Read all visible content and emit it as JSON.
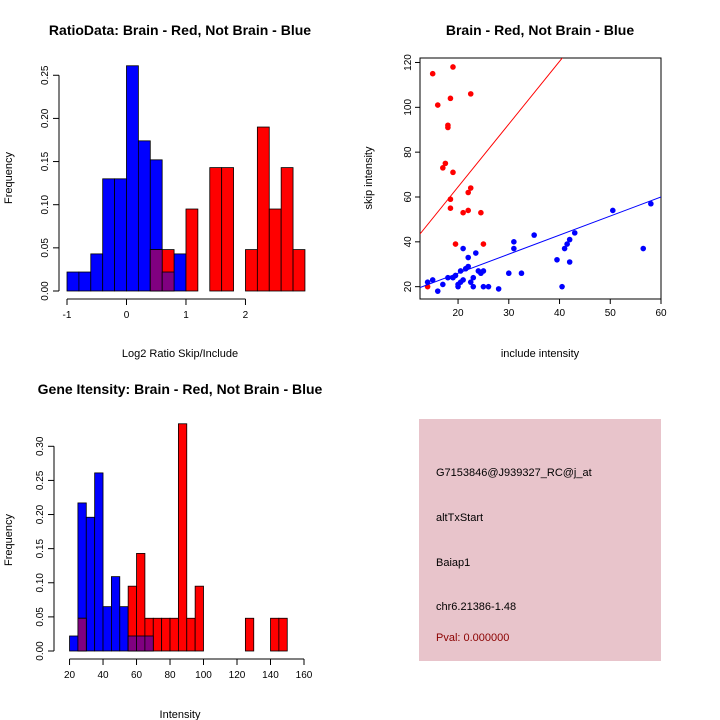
{
  "colors": {
    "brain": "#ff0000",
    "not_brain": "#0000ff",
    "overlap": "#800080",
    "panel_fill": "#e8c4cb",
    "pval": "#8b0000"
  },
  "chart_data": [
    {
      "type": "histogram",
      "title": "RatioData: Brain - Red, Not Brain - Blue",
      "xlabel": "Log2 Ratio Skip/Include",
      "ylabel": "Frequency",
      "xlim": [
        -1,
        2.9
      ],
      "ylim": [
        0,
        0.27
      ],
      "xticks": [
        -1,
        0,
        1,
        2
      ],
      "yticks": [
        0.0,
        0.05,
        0.1,
        0.15,
        0.2,
        0.25
      ],
      "yticklabels": [
        "0.00",
        "0.05",
        "0.10",
        "0.15",
        "0.20",
        "0.25"
      ],
      "bin_width": 0.2,
      "series": [
        {
          "name": "Not Brain",
          "color": "blue",
          "bins": [
            -1.0,
            -0.8,
            -0.6,
            -0.4,
            -0.2,
            0.0,
            0.2,
            0.4,
            0.6,
            0.8
          ],
          "values": [
            0.022,
            0.022,
            0.043,
            0.13,
            0.13,
            0.261,
            0.174,
            0.152,
            0.022,
            0.043
          ]
        },
        {
          "name": "Brain",
          "color": "red",
          "bins": [
            0.4,
            0.6,
            0.8,
            1.0,
            1.2,
            1.4,
            1.6,
            1.8,
            2.0,
            2.2,
            2.4,
            2.6,
            2.8
          ],
          "values": [
            0.048,
            0.048,
            0.0,
            0.095,
            0.0,
            0.143,
            0.143,
            0.0,
            0.048,
            0.19,
            0.095,
            0.143,
            0.048
          ]
        }
      ]
    },
    {
      "type": "scatter",
      "title": "Brain - Red, Not Brain - Blue",
      "xlabel": "include intensity",
      "ylabel": "skip intensity",
      "xlim": [
        12.5,
        60
      ],
      "ylim": [
        14.5,
        122
      ],
      "xticks": [
        20,
        30,
        40,
        50,
        60
      ],
      "yticks": [
        20,
        40,
        60,
        80,
        100,
        120
      ],
      "series": [
        {
          "name": "Brain",
          "color": "red",
          "points": [
            [
              15,
              115
            ],
            [
              16,
              101
            ],
            [
              17,
              73
            ],
            [
              17.5,
              75
            ],
            [
              18,
              91
            ],
            [
              18,
              92
            ],
            [
              18.5,
              59
            ],
            [
              18.5,
              104
            ],
            [
              19,
              118
            ],
            [
              19,
              71
            ],
            [
              18.5,
              55
            ],
            [
              19.5,
              39
            ],
            [
              21,
              53
            ],
            [
              22,
              62
            ],
            [
              22.5,
              64
            ],
            [
              22,
              54
            ],
            [
              22.5,
              106
            ],
            [
              24.5,
              53
            ],
            [
              25,
              39
            ],
            [
              14,
              20
            ]
          ],
          "fit_line": {
            "intercept": 8.5,
            "slope": 2.8
          }
        },
        {
          "name": "Not Brain",
          "color": "blue",
          "points": [
            [
              14,
              22
            ],
            [
              15,
              23
            ],
            [
              16,
              18
            ],
            [
              17,
              21
            ],
            [
              18,
              24
            ],
            [
              19,
              24
            ],
            [
              19.5,
              25
            ],
            [
              20,
              21
            ],
            [
              20.5,
              22
            ],
            [
              20.5,
              27
            ],
            [
              21,
              23
            ],
            [
              21.5,
              28
            ],
            [
              22,
              29
            ],
            [
              22,
              33
            ],
            [
              23,
              24
            ],
            [
              23.5,
              35
            ],
            [
              24.5,
              26
            ],
            [
              25,
              27
            ],
            [
              25,
              20
            ],
            [
              26,
              20
            ],
            [
              20,
              20
            ],
            [
              21,
              37
            ],
            [
              22.5,
              22
            ],
            [
              23,
              20
            ],
            [
              24,
              27
            ],
            [
              28,
              19
            ],
            [
              30,
              26
            ],
            [
              31,
              37
            ],
            [
              31,
              40
            ],
            [
              32.5,
              26
            ],
            [
              35,
              43
            ],
            [
              39.5,
              32
            ],
            [
              40.5,
              20
            ],
            [
              41,
              37
            ],
            [
              41.5,
              39
            ],
            [
              42,
              41
            ],
            [
              42,
              31
            ],
            [
              43,
              44
            ],
            [
              50.5,
              54
            ],
            [
              56.5,
              37
            ],
            [
              58,
              57
            ]
          ],
          "fit_line": {
            "intercept": 9.0,
            "slope": 0.85
          }
        }
      ]
    },
    {
      "type": "histogram",
      "title": "Gene Itensity: Brain - Red, Not Brain - Blue",
      "xlabel": "Intensity",
      "ylabel": "Frequency",
      "xlim": [
        15.5,
        160
      ],
      "ylim": [
        0,
        0.34
      ],
      "xticks": [
        20,
        40,
        60,
        80,
        100,
        120,
        140,
        160
      ],
      "yticks": [
        0.0,
        0.05,
        0.1,
        0.15,
        0.2,
        0.25,
        0.3
      ],
      "yticklabels": [
        "0.00",
        "0.05",
        "0.10",
        "0.15",
        "0.20",
        "0.25",
        "0.30"
      ],
      "bin_width": 5,
      "series": [
        {
          "name": "Not Brain",
          "color": "blue",
          "bins": [
            20,
            25,
            30,
            35,
            40,
            45,
            50,
            55,
            60,
            65,
            70,
            75,
            80
          ],
          "values": [
            0.022,
            0.217,
            0.196,
            0.261,
            0.065,
            0.109,
            0.065,
            0.022,
            0.022,
            0.022,
            0.0,
            0.0,
            0.0
          ]
        },
        {
          "name": "Brain",
          "color": "red",
          "bins": [
            25,
            55,
            60,
            65,
            70,
            75,
            80,
            85,
            90,
            95,
            100,
            125,
            140,
            145
          ],
          "values": [
            0.048,
            0.095,
            0.143,
            0.048,
            0.048,
            0.048,
            0.048,
            0.333,
            0.048,
            0.095,
            0.0,
            0.048,
            0.048,
            0.048
          ]
        }
      ]
    }
  ],
  "info_panel": {
    "probe_id": "G7153846@J939327_RC@j_at",
    "event_type": "altTxStart",
    "gene": "Baiap1",
    "location": "chr6.21386-1.48",
    "pval": "Pval: 0.000000"
  }
}
